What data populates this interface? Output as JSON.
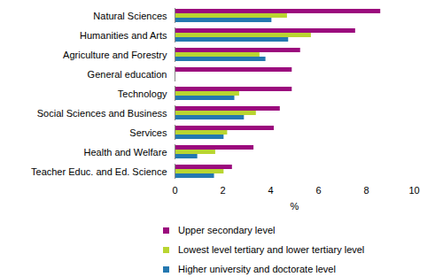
{
  "chart_data": {
    "type": "bar",
    "orientation": "horizontal",
    "categories": [
      "Natural Sciences",
      "Humanities and Arts",
      "Agriculture and Forestry",
      "General education",
      "Technology",
      "Social Sciences and Business",
      "Services",
      "Health and Welfare",
      "Teacher Educ. and Ed. Science"
    ],
    "series": [
      {
        "name": "Upper secondary level",
        "color": "#9b0a7d",
        "values": [
          8.6,
          7.55,
          5.25,
          4.9,
          4.9,
          4.4,
          4.15,
          3.3,
          2.4
        ]
      },
      {
        "name": "Lowest level tertiary and lower tertiary level",
        "color": "#b9d531",
        "values": [
          4.7,
          5.7,
          3.55,
          null,
          2.7,
          3.4,
          2.2,
          1.7,
          2.05
        ]
      },
      {
        "name": "Higher university and doctorate level",
        "color": "#2478b0",
        "values": [
          4.05,
          4.75,
          3.8,
          null,
          2.5,
          2.9,
          2.05,
          0.95,
          1.65
        ]
      }
    ],
    "xlabel": "%",
    "xlim": [
      0,
      10
    ],
    "xticks": [
      0,
      2,
      4,
      6,
      8,
      10
    ],
    "grid": false,
    "legend": "bottom"
  }
}
